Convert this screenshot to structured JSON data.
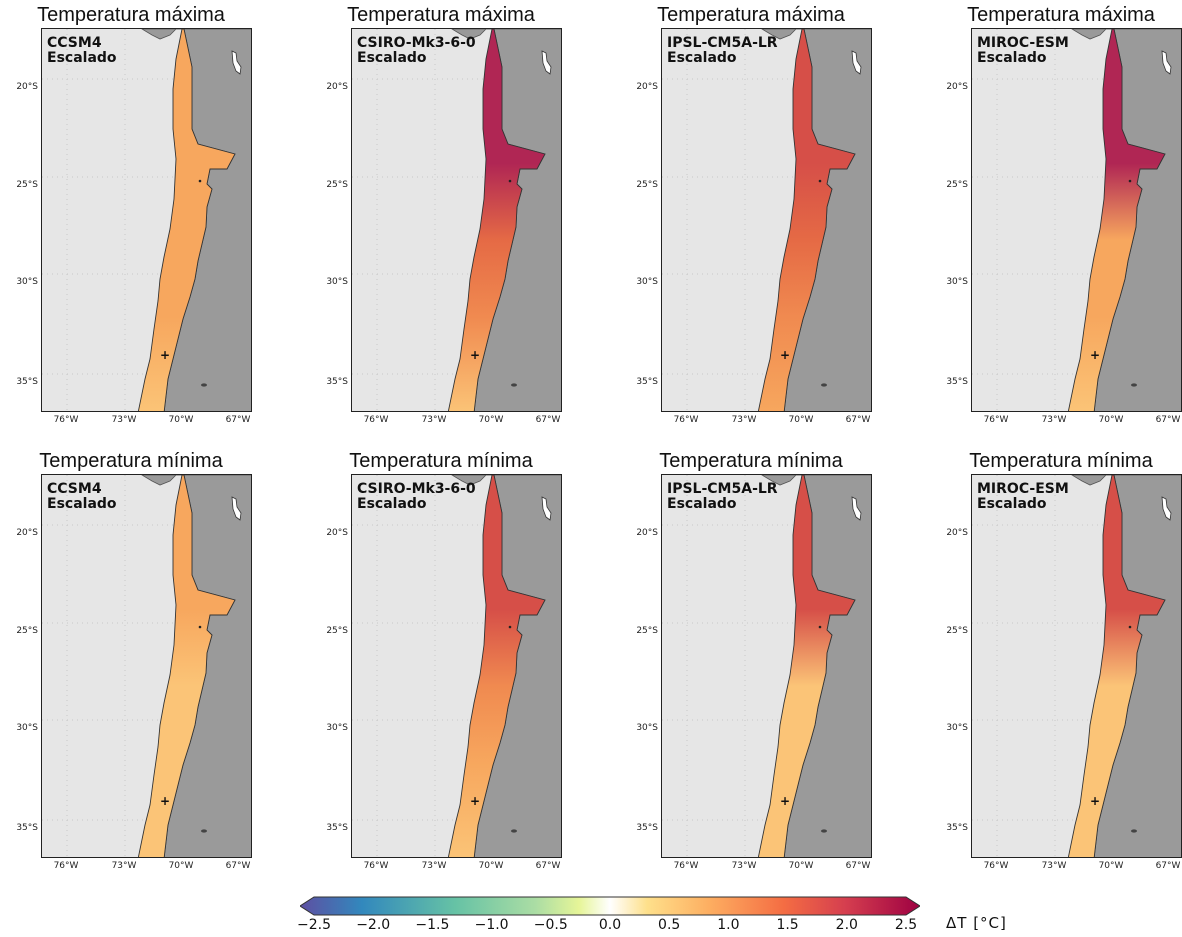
{
  "panels": [
    {
      "row": 0,
      "col": 0,
      "title": "Temperatura máxima",
      "model": "CCSM4",
      "method": "Escalado",
      "bands": {
        "north": 1.4,
        "mid": 1.4,
        "south": 1.3
      }
    },
    {
      "row": 0,
      "col": 1,
      "title": "Temperatura máxima",
      "model": "CSIRO-Mk3-6-0",
      "method": "Escalado",
      "bands": {
        "north": 2.3,
        "mid": 1.8,
        "south": 1.3
      }
    },
    {
      "row": 0,
      "col": 2,
      "title": "Temperatura máxima",
      "model": "IPSL-CM5A-LR",
      "method": "Escalado",
      "bands": {
        "north": 2.0,
        "mid": 1.8,
        "south": 1.4
      }
    },
    {
      "row": 0,
      "col": 3,
      "title": "Temperatura máxima",
      "model": "MIROC-ESM",
      "method": "Escalado",
      "bands": {
        "north": 2.4,
        "mid": 1.4,
        "south": 1.3
      }
    },
    {
      "row": 1,
      "col": 0,
      "title": "Temperatura mínima",
      "model": "CCSM4",
      "method": "Escalado",
      "bands": {
        "north": 1.4,
        "mid": 1.3,
        "south": 1.3
      }
    },
    {
      "row": 1,
      "col": 1,
      "title": "Temperatura mínima",
      "model": "CSIRO-Mk3-6-0",
      "method": "Escalado",
      "bands": {
        "north": 2.0,
        "mid": 1.6,
        "south": 1.3
      }
    },
    {
      "row": 1,
      "col": 2,
      "title": "Temperatura mínima",
      "model": "IPSL-CM5A-LR",
      "method": "Escalado",
      "bands": {
        "north": 2.0,
        "mid": 1.3,
        "south": 1.2
      }
    },
    {
      "row": 1,
      "col": 3,
      "title": "Temperatura mínima",
      "model": "MIROC-ESM",
      "method": "Escalado",
      "bands": {
        "north": 1.9,
        "mid": 1.3,
        "south": 1.2
      }
    }
  ],
  "lat_ticks": [
    "20°S",
    "25°S",
    "30°S",
    "35°S"
  ],
  "lon_ticks": [
    "76°W",
    "73°W",
    "70°W",
    "67°W"
  ],
  "colorbar": {
    "ticks": [
      "−2.5",
      "−2.0",
      "−1.5",
      "−1.0",
      "−0.5",
      "0.0",
      "0.5",
      "1.0",
      "1.5",
      "2.0",
      "2.5"
    ],
    "label": "ΔT  [°C]",
    "min": -2.5,
    "max": 2.5,
    "colors": [
      "#5e4fa2",
      "#3288bd",
      "#66c2a5",
      "#abdda4",
      "#e6f598",
      "#ffffff",
      "#fee08b",
      "#fdae61",
      "#f46d43",
      "#d53e4f",
      "#9e0142"
    ]
  },
  "colors": {
    "ocean": "#e6e6e6",
    "land": "#9a9a9a"
  }
}
